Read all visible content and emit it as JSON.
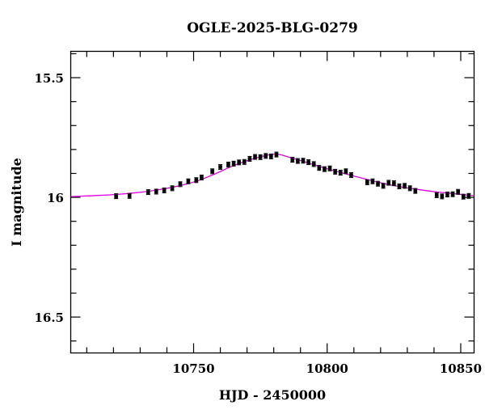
{
  "chart_data": {
    "type": "scatter",
    "title": "OGLE-2025-BLG-0279",
    "xlabel": "HJD - 2450000",
    "ylabel": "I magnitude",
    "xlim": [
      10704,
      10855
    ],
    "ylim": [
      16.65,
      15.39
    ],
    "y_inverted": true,
    "x_major_ticks": [
      10750,
      10800,
      10850
    ],
    "x_minor_step": 10,
    "y_major_ticks": [
      15.5,
      16,
      16.5
    ],
    "y_minor_step": 0.1,
    "grid": false,
    "model_color": "#e000e0",
    "point_color": "#000000",
    "series": [
      {
        "kind": "points",
        "x": [
          10721,
          10726,
          10733,
          10736,
          10739,
          10742,
          10745,
          10748,
          10751,
          10753,
          10757,
          10760,
          10763,
          10765,
          10767,
          10769,
          10771,
          10773,
          10775,
          10777,
          10779,
          10781,
          10787,
          10789,
          10791,
          10793,
          10795,
          10797,
          10799,
          10801,
          10803,
          10805,
          10807,
          10809,
          10815,
          10817,
          10819,
          10821,
          10823,
          10825,
          10827,
          10829,
          10831,
          10833,
          10841,
          10843,
          10845,
          10847,
          10849,
          10851,
          10853,
          10855
        ],
        "y": [
          15.995,
          15.994,
          15.978,
          15.976,
          15.971,
          15.962,
          15.945,
          15.933,
          15.928,
          15.917,
          15.891,
          15.873,
          15.863,
          15.859,
          15.854,
          15.852,
          15.839,
          15.831,
          15.832,
          15.827,
          15.829,
          15.821,
          15.843,
          15.848,
          15.847,
          15.853,
          15.861,
          15.877,
          15.882,
          15.879,
          15.893,
          15.897,
          15.891,
          15.907,
          15.937,
          15.933,
          15.943,
          15.952,
          15.939,
          15.941,
          15.954,
          15.952,
          15.962,
          15.973,
          15.991,
          15.996,
          15.988,
          15.987,
          15.977,
          15.997,
          15.994,
          16.003
        ],
        "yerr": 0.01
      },
      {
        "kind": "model",
        "x": [
          10704,
          10710,
          10716,
          10722,
          10728,
          10734,
          10740,
          10746,
          10752,
          10758,
          10764,
          10770,
          10776,
          10781,
          10786,
          10792,
          10798,
          10804,
          10810,
          10816,
          10822,
          10828,
          10834,
          10840,
          10846,
          10852,
          10855
        ],
        "y": [
          15.997,
          15.994,
          15.991,
          15.987,
          15.981,
          15.973,
          15.962,
          15.948,
          15.929,
          15.902,
          15.872,
          15.847,
          15.828,
          15.819,
          15.833,
          15.853,
          15.874,
          15.893,
          15.911,
          15.928,
          15.944,
          15.957,
          15.967,
          15.976,
          15.983,
          15.99,
          15.993
        ]
      }
    ]
  }
}
